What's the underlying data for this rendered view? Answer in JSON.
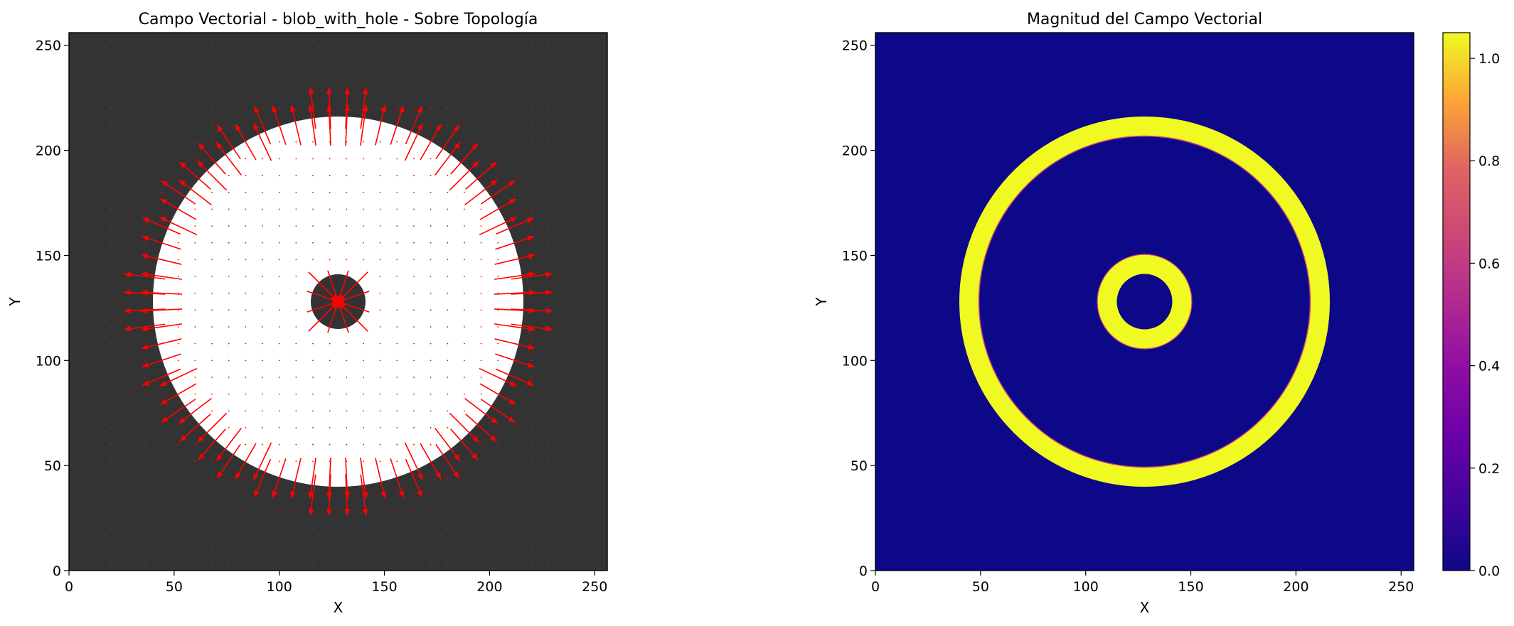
{
  "chart_data": [
    {
      "type": "quiver",
      "title": "Campo Vectorial - blob_with_hole - Sobre Topología",
      "xlabel": "X",
      "ylabel": "Y",
      "xlim": [
        0,
        256
      ],
      "ylim": [
        0,
        256
      ],
      "xticks": [
        0,
        50,
        100,
        150,
        200,
        250
      ],
      "yticks": [
        0,
        50,
        100,
        150,
        200,
        250
      ],
      "background_image": {
        "shape": "ring",
        "center": [
          128,
          128
        ],
        "outer_radius": 88,
        "inner_radius": 13,
        "ring_color": "#ffffff",
        "background_color": "#333333"
      },
      "vector_grid_spacing": 8,
      "vector_field": "unit vectors normal to the ring boundary; outward at the outer edge, toward the hole center at the inner edge; near zero elsewhere",
      "arrow_color": "#ff0000"
    },
    {
      "type": "heatmap",
      "title": "Magnitud del Campo Vectorial",
      "xlabel": "X",
      "ylabel": "Y",
      "xlim": [
        0,
        256
      ],
      "ylim": [
        0,
        256
      ],
      "xticks": [
        0,
        50,
        100,
        150,
        200,
        250
      ],
      "yticks": [
        0,
        50,
        100,
        150,
        200,
        250
      ],
      "colormap": "plasma",
      "value_range": [
        0.0,
        1.05
      ],
      "colorbar_ticks": [
        "0.0",
        "0.2",
        "0.4",
        "0.6",
        "0.8",
        "1.0"
      ],
      "bands": [
        {
          "shape": "annulus",
          "center": [
            128,
            128
          ],
          "r_inner": 79,
          "r_outer": 88,
          "value": 1.0
        },
        {
          "shape": "annulus",
          "center": [
            128,
            128
          ],
          "r_inner": 13,
          "r_outer": 22,
          "value": 1.0
        }
      ],
      "background_value": 0.0
    }
  ]
}
